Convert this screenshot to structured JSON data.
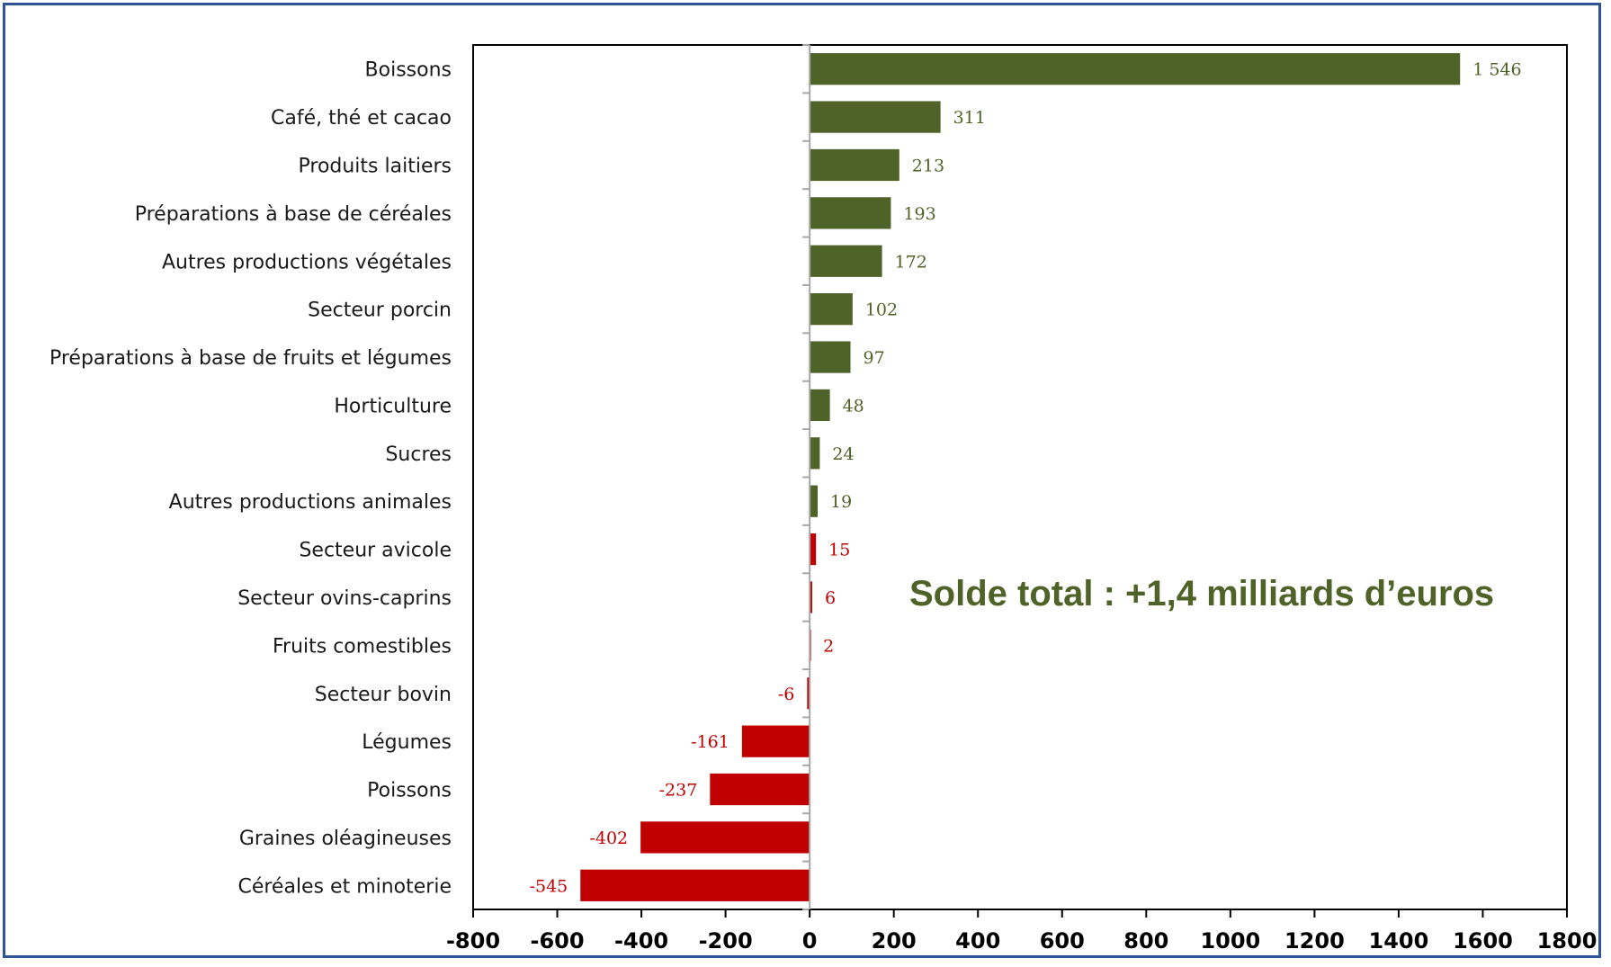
{
  "colors": {
    "positive": "#4f6228",
    "negative": "#c00000",
    "frame": "#2f5597",
    "zero_line": "#a6a6a6"
  },
  "chart_data": {
    "type": "bar",
    "orientation": "horizontal",
    "categories": [
      "Boissons",
      "Café, thé et cacao",
      "Produits laitiers",
      "Préparations à base de céréales",
      "Autres productions végétales",
      "Secteur porcin",
      "Préparations à base de fruits et légumes",
      "Horticulture",
      "Sucres",
      "Autres productions animales",
      "Secteur avicole",
      "Secteur ovins-caprins",
      "Fruits comestibles",
      "Secteur bovin",
      "Légumes",
      "Poissons",
      "Graines oléagineuses",
      "Céréales et minoterie"
    ],
    "values": [
      1546,
      311,
      213,
      193,
      172,
      102,
      97,
      48,
      24,
      19,
      15,
      6,
      2,
      -6,
      -161,
      -237,
      -402,
      -545
    ],
    "value_labels": [
      "1 546",
      "311",
      "213",
      "193",
      "172",
      "102",
      "97",
      "48",
      "24",
      "19",
      "15",
      "6",
      "2",
      "-6",
      "-161",
      "-237",
      "-402",
      "-545"
    ],
    "bar_colors": [
      "positive",
      "positive",
      "positive",
      "positive",
      "positive",
      "positive",
      "positive",
      "positive",
      "positive",
      "positive",
      "negative",
      "negative",
      "negative",
      "negative",
      "negative",
      "negative",
      "negative",
      "negative"
    ],
    "xlim": [
      -800,
      1800
    ],
    "x_ticks": [
      -800,
      -600,
      -400,
      -200,
      0,
      200,
      400,
      600,
      800,
      1000,
      1200,
      1400,
      1600,
      1800
    ],
    "x_tick_labels": [
      "-800",
      "-600",
      "-400",
      "-200",
      "0",
      "200",
      "400",
      "600",
      "800",
      "1000",
      "1200",
      "1400",
      "1600",
      "1800"
    ],
    "title": "",
    "xlabel": "",
    "ylabel": "",
    "grid": false,
    "legend": "none",
    "annotation": "Solde total : +1,4 milliards d’euros"
  }
}
